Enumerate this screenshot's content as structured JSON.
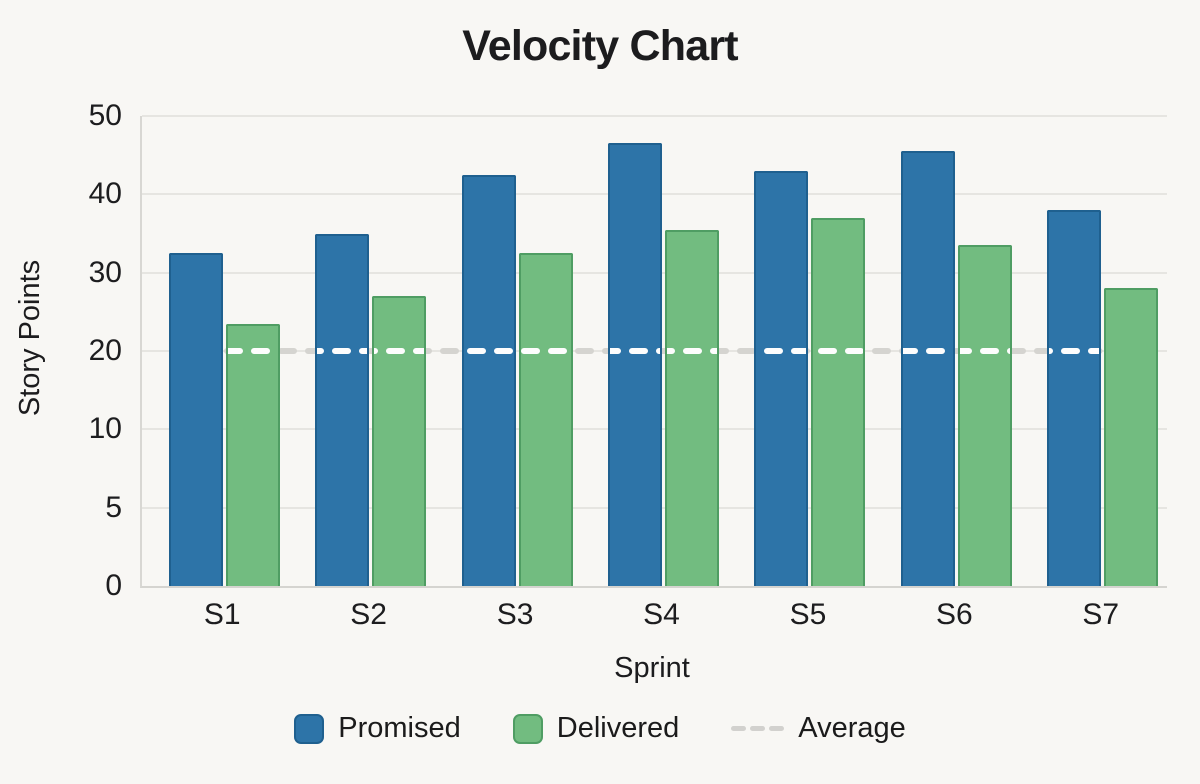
{
  "title": "Velocity Chart",
  "y_axis": {
    "label": "Story Points",
    "ticks": [
      0,
      5,
      10,
      20,
      30,
      40,
      50
    ],
    "equal_tick_spacing": true
  },
  "x_axis": {
    "label": "Sprint",
    "categories": [
      "S1",
      "S2",
      "S3",
      "S4",
      "S5",
      "S6",
      "S7"
    ]
  },
  "legend": [
    {
      "label": "Promised",
      "swatch": "square",
      "color": "#2d74a8",
      "border": "#1f608f"
    },
    {
      "label": "Delivered",
      "swatch": "square",
      "color": "#72bc80",
      "border": "#4f9d63"
    },
    {
      "label": "Average",
      "swatch": "dashes",
      "color": "#d2d1ce"
    }
  ],
  "colors": {
    "background": "#f8f7f4",
    "gridline": "#e6e5e1",
    "axis_line": "#d8d7d3",
    "promised_fill": "#2d74a8",
    "promised_border": "#1f608f",
    "delivered_fill": "#72bc80",
    "delivered_border": "#4f9d63",
    "average_dash_on_background": "#d5d4d0",
    "average_dash_on_bars": "#fdfdfd",
    "text": "#1d1d1f"
  },
  "chart_data": {
    "type": "bar",
    "title": "Velocity Chart",
    "xlabel": "Sprint",
    "ylabel": "Story Points",
    "categories": [
      "S1",
      "S2",
      "S3",
      "S4",
      "S5",
      "S6",
      "S7"
    ],
    "series": [
      {
        "name": "Promised",
        "color": "#2d74a8",
        "values": [
          32.5,
          35,
          42.5,
          46.5,
          43,
          45.5,
          38
        ]
      },
      {
        "name": "Delivered",
        "color": "#72bc80",
        "values": [
          23.5,
          27,
          32.5,
          35.5,
          37,
          33.5,
          28
        ]
      }
    ],
    "average_line": {
      "name": "Average",
      "value": 20,
      "style": "dashed",
      "spans": "S1 center to S7 center"
    },
    "ylim": [
      0,
      50
    ],
    "y_ticks": [
      0,
      5,
      10,
      20,
      30,
      40,
      50
    ],
    "y_ticks_equally_spaced": true,
    "grid": true,
    "legend_position": "bottom"
  }
}
